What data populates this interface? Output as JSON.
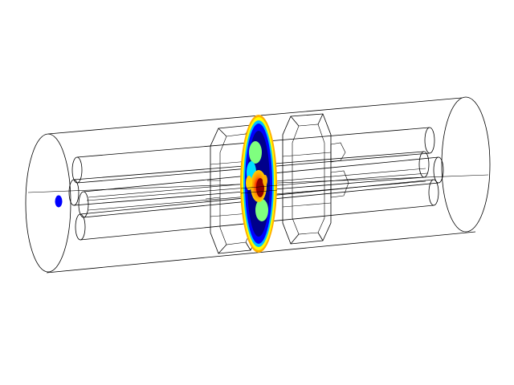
{
  "scene": {
    "background": "#ffffff",
    "wireframe_color": "#000000",
    "colormap": [
      "#00008b",
      "#0000ff",
      "#00bfff",
      "#7fff7f",
      "#ffff00",
      "#ff8c00",
      "#ff0000",
      "#8b0000"
    ],
    "source_marker_color": "#0000ff",
    "rods": 6,
    "spacer_grids": 2
  }
}
